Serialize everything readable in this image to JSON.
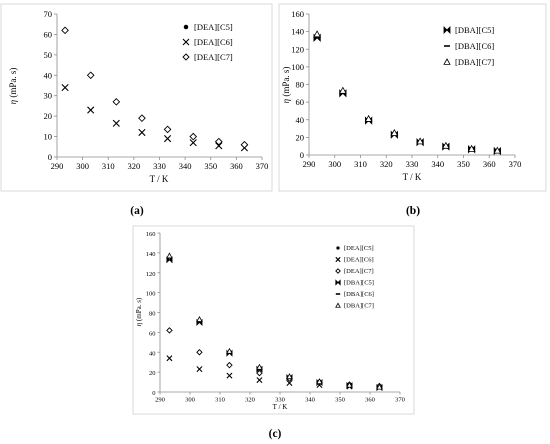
{
  "panels": [
    {
      "label": "(a)",
      "xlabel": "T / K",
      "ylabel": "η (mPa. s)",
      "chart_data": {
        "type": "scatter",
        "xlim": [
          290,
          370
        ],
        "ylim": [
          0,
          70
        ],
        "xticks": [
          290,
          300,
          310,
          320,
          330,
          340,
          350,
          360,
          370
        ],
        "yticks": [
          0,
          10,
          20,
          30,
          40,
          50,
          60,
          70
        ],
        "grid": false,
        "legend_position": "top-right",
        "series": [
          {
            "name": "[DEA][C5]",
            "marker": "dot",
            "x": [],
            "y": []
          },
          {
            "name": "[DEA][C6]",
            "marker": "x",
            "x": [
              293.15,
              303.15,
              313.15,
              323.15,
              333.15,
              343.15,
              353.15,
              363.15
            ],
            "y": [
              34,
              23,
              16.5,
              12,
              9,
              7,
              5.5,
              4.5
            ]
          },
          {
            "name": "[DEA][C7]",
            "marker": "diamond",
            "x": [
              293.15,
              303.15,
              313.15,
              323.15,
              333.15,
              343.15,
              353.15,
              363.15
            ],
            "y": [
              62,
              40,
              27,
              19,
              13.5,
              10,
              7.5,
              6
            ]
          }
        ]
      }
    },
    {
      "label": "(b)",
      "xlabel": "T / K",
      "ylabel": "η (mPa. s)",
      "chart_data": {
        "type": "scatter",
        "xlim": [
          290,
          370
        ],
        "ylim": [
          0,
          160
        ],
        "xticks": [
          290,
          300,
          310,
          320,
          330,
          340,
          350,
          360,
          370
        ],
        "yticks": [
          0,
          20,
          40,
          60,
          80,
          100,
          120,
          140,
          160
        ],
        "grid": false,
        "legend_position": "top-right",
        "series": [
          {
            "name": "[DBA][C5]",
            "marker": "bowtie",
            "x": [
              293.15,
              303.15,
              313.15,
              323.15,
              333.15,
              343.15,
              353.15,
              363.15
            ],
            "y": [
              133,
              70,
              39,
              23,
              14.5,
              9.5,
              6.5,
              4.5
            ]
          },
          {
            "name": "[DBA][C6]",
            "marker": "dash",
            "x": [
              293.15,
              303.15,
              313.15,
              323.15,
              333.15,
              343.15,
              353.15,
              363.15
            ],
            "y": [
              135,
              71,
              40,
              24,
              15,
              10,
              7,
              5
            ]
          },
          {
            "name": "[DBA][C7]",
            "marker": "triangle",
            "x": [
              293.15,
              303.15,
              313.15,
              323.15,
              333.15,
              343.15,
              353.15,
              363.15
            ],
            "y": [
              137,
              73,
              41,
              25,
              15.5,
              10.5,
              7,
              5
            ]
          }
        ]
      }
    },
    {
      "label": "(c)",
      "xlabel": "T / K",
      "ylabel": "η (mPa. s)",
      "chart_data": {
        "type": "scatter",
        "xlim": [
          290,
          370
        ],
        "ylim": [
          0,
          160
        ],
        "xticks": [
          290,
          300,
          310,
          320,
          330,
          340,
          350,
          360,
          370
        ],
        "yticks": [
          0,
          20,
          40,
          60,
          80,
          100,
          120,
          140,
          160
        ],
        "grid": false,
        "legend_position": "right",
        "series": [
          {
            "name": "[DEA][C5]",
            "marker": "dot",
            "x": [],
            "y": []
          },
          {
            "name": "[DEA][C6]",
            "marker": "x",
            "x": [
              293.15,
              303.15,
              313.15,
              323.15,
              333.15,
              343.15,
              353.15,
              363.15
            ],
            "y": [
              34,
              23,
              16.5,
              12,
              9,
              7,
              5.5,
              4.5
            ]
          },
          {
            "name": "[DEA][C7]",
            "marker": "diamond",
            "x": [
              293.15,
              303.15,
              313.15,
              323.15,
              333.15,
              343.15,
              353.15,
              363.15
            ],
            "y": [
              62,
              40,
              27,
              19,
              13.5,
              10,
              7.5,
              6
            ]
          },
          {
            "name": "[DBA][C5]",
            "marker": "bowtie",
            "x": [
              293.15,
              303.15,
              313.15,
              323.15,
              333.15,
              343.15,
              353.15,
              363.15
            ],
            "y": [
              133,
              70,
              39,
              23,
              14.5,
              9.5,
              6.5,
              4.5
            ]
          },
          {
            "name": "[DBA][C6]",
            "marker": "dash",
            "x": [
              293.15,
              303.15,
              313.15,
              323.15,
              333.15,
              343.15,
              353.15,
              363.15
            ],
            "y": [
              135,
              71,
              40,
              24,
              15,
              10,
              7,
              5
            ]
          },
          {
            "name": "[DBA][C7]",
            "marker": "triangle",
            "x": [
              293.15,
              303.15,
              313.15,
              323.15,
              333.15,
              343.15,
              353.15,
              363.15
            ],
            "y": [
              137,
              73,
              41,
              25,
              15.5,
              10.5,
              7,
              5
            ]
          }
        ]
      }
    }
  ]
}
